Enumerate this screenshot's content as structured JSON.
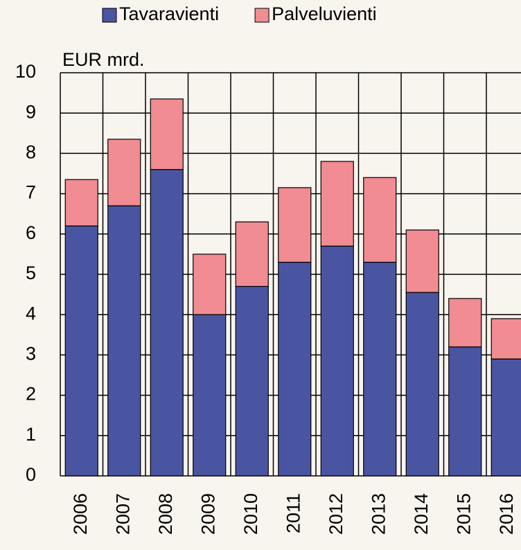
{
  "chart_data": {
    "type": "stacked_bar",
    "y_label": "EUR mrd.",
    "categories": [
      "2006",
      "2007",
      "2008",
      "2009",
      "2010",
      "2011",
      "2012",
      "2013",
      "2014",
      "2015",
      "2016"
    ],
    "series": [
      {
        "name": "Tavaravienti",
        "color": "#4a55a2",
        "values": [
          6.2,
          6.7,
          7.6,
          4.0,
          4.7,
          5.3,
          5.7,
          5.3,
          4.55,
          3.2,
          2.9
        ]
      },
      {
        "name": "Palveluvienti",
        "color": "#f08c92",
        "values": [
          1.15,
          1.65,
          1.75,
          1.5,
          1.6,
          1.85,
          2.1,
          2.1,
          1.55,
          1.2,
          1.0
        ]
      }
    ],
    "ylim": [
      0,
      10
    ],
    "yticks": [
      0,
      1,
      2,
      3,
      4,
      5,
      6,
      7,
      8,
      9,
      10
    ],
    "grid": true
  }
}
